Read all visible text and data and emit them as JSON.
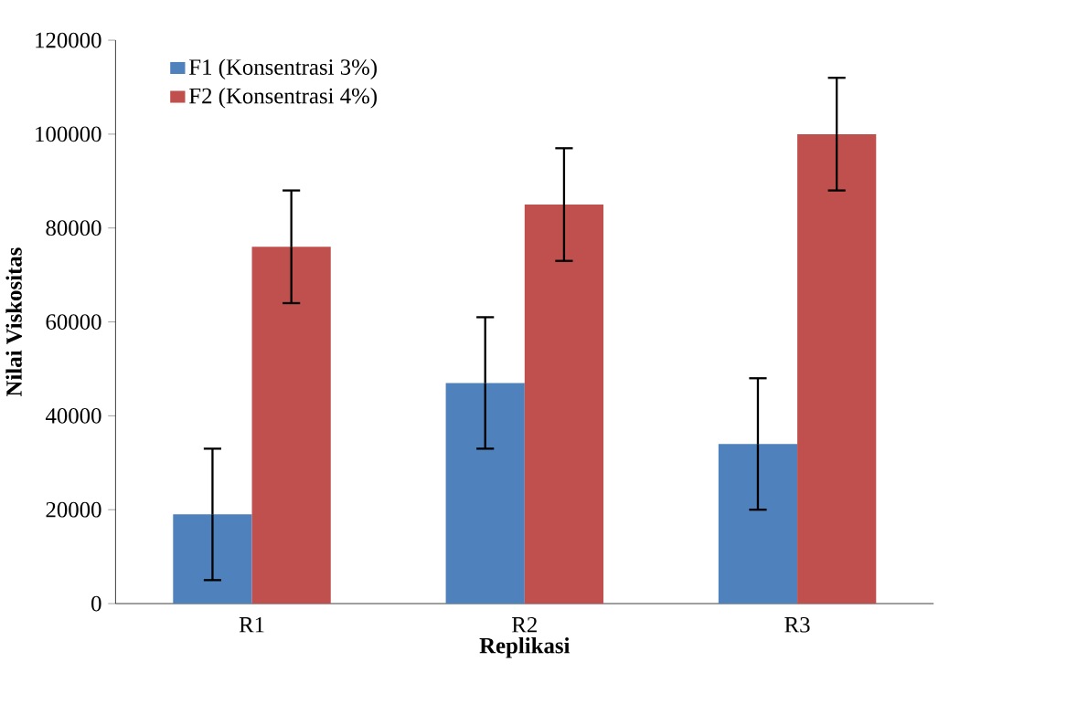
{
  "chart_data": {
    "type": "bar",
    "xlabel": "Replikasi",
    "ylabel": "Nilai Viskositas",
    "categories": [
      "R1",
      "R2",
      "R3"
    ],
    "series": [
      {
        "name": "F1 (Konsentrasi 3%)",
        "color": "#4f81bd",
        "values": [
          19000,
          47000,
          34000
        ],
        "errors": [
          14000,
          14000,
          14000
        ]
      },
      {
        "name": "F2 (Konsentrasi 4%)",
        "color": "#c0504d",
        "values": [
          76000,
          85000,
          100000
        ],
        "errors": [
          12000,
          12000,
          12000
        ]
      }
    ],
    "ylim": [
      0,
      120000
    ],
    "yticks": [
      0,
      20000,
      40000,
      60000,
      80000,
      100000,
      120000
    ],
    "legend": "top left"
  }
}
